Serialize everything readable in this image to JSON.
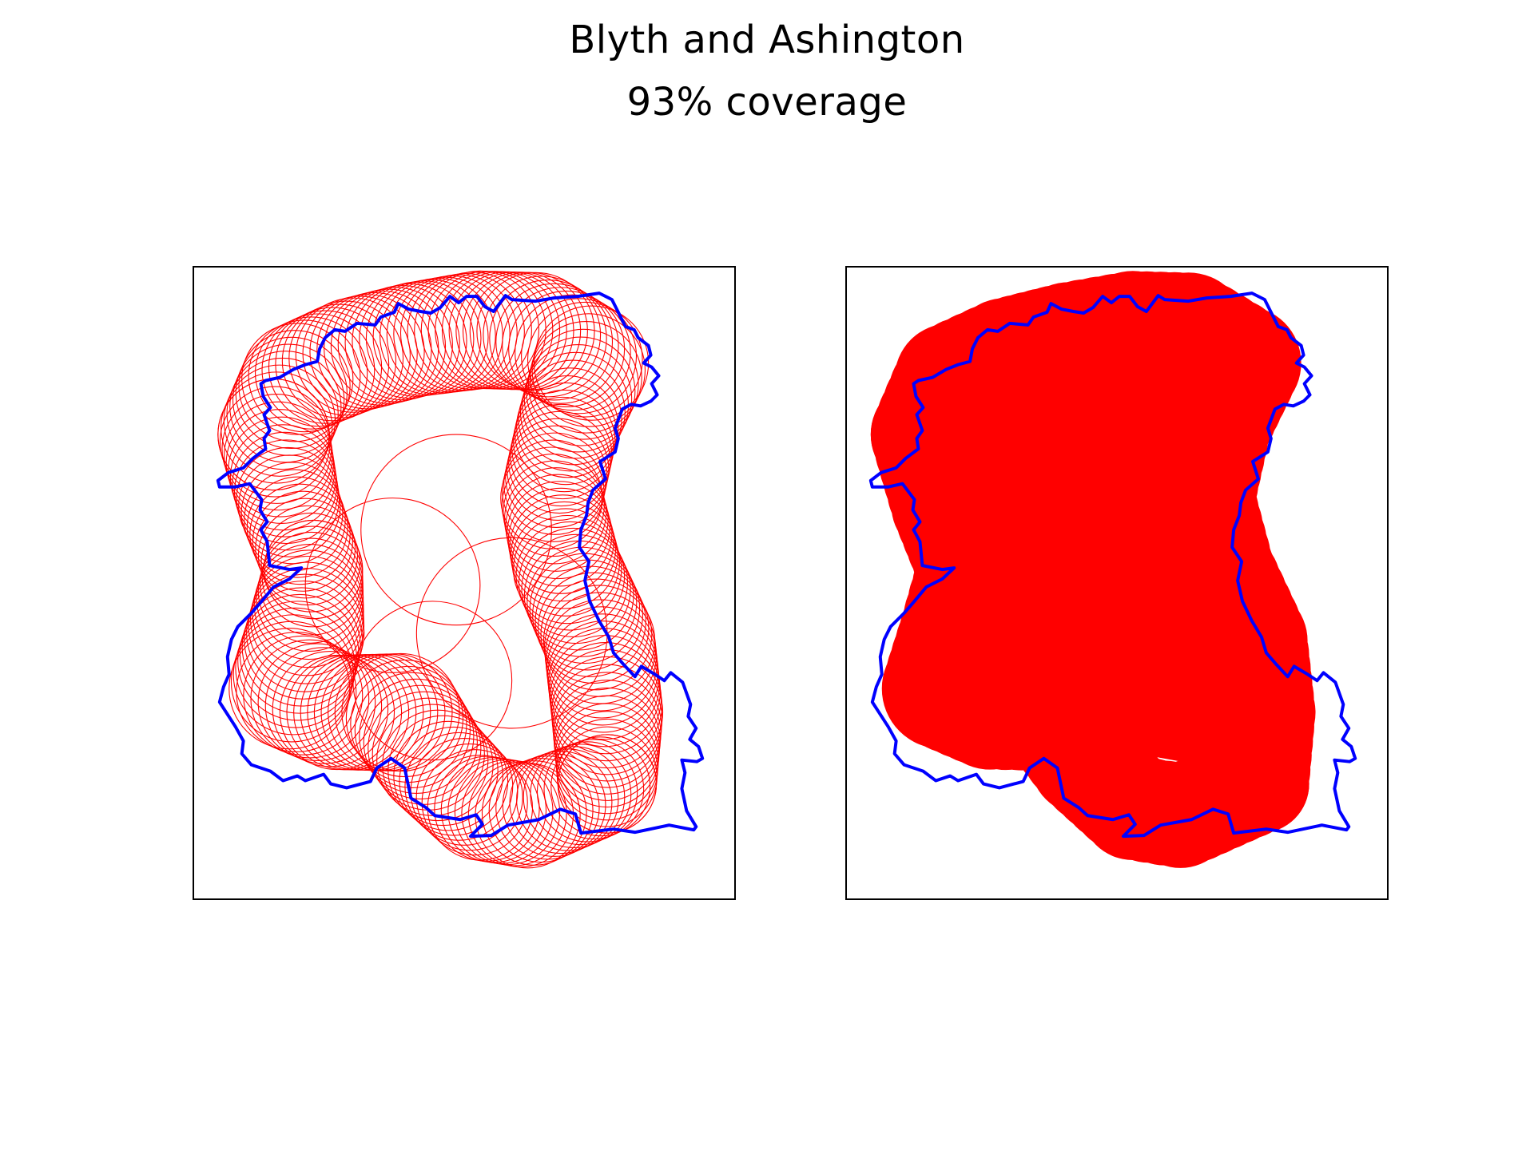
{
  "figure": {
    "title": "Blyth and Ashington",
    "subtitle": "93% coverage"
  },
  "colors": {
    "boundary": "#0000ff",
    "coverage": "#ff0000",
    "frame": "#000000",
    "background": "#ffffff"
  },
  "panels": [
    {
      "name": "left",
      "style": "circle-outlines"
    },
    {
      "name": "right",
      "style": "filled-coverage"
    }
  ]
}
